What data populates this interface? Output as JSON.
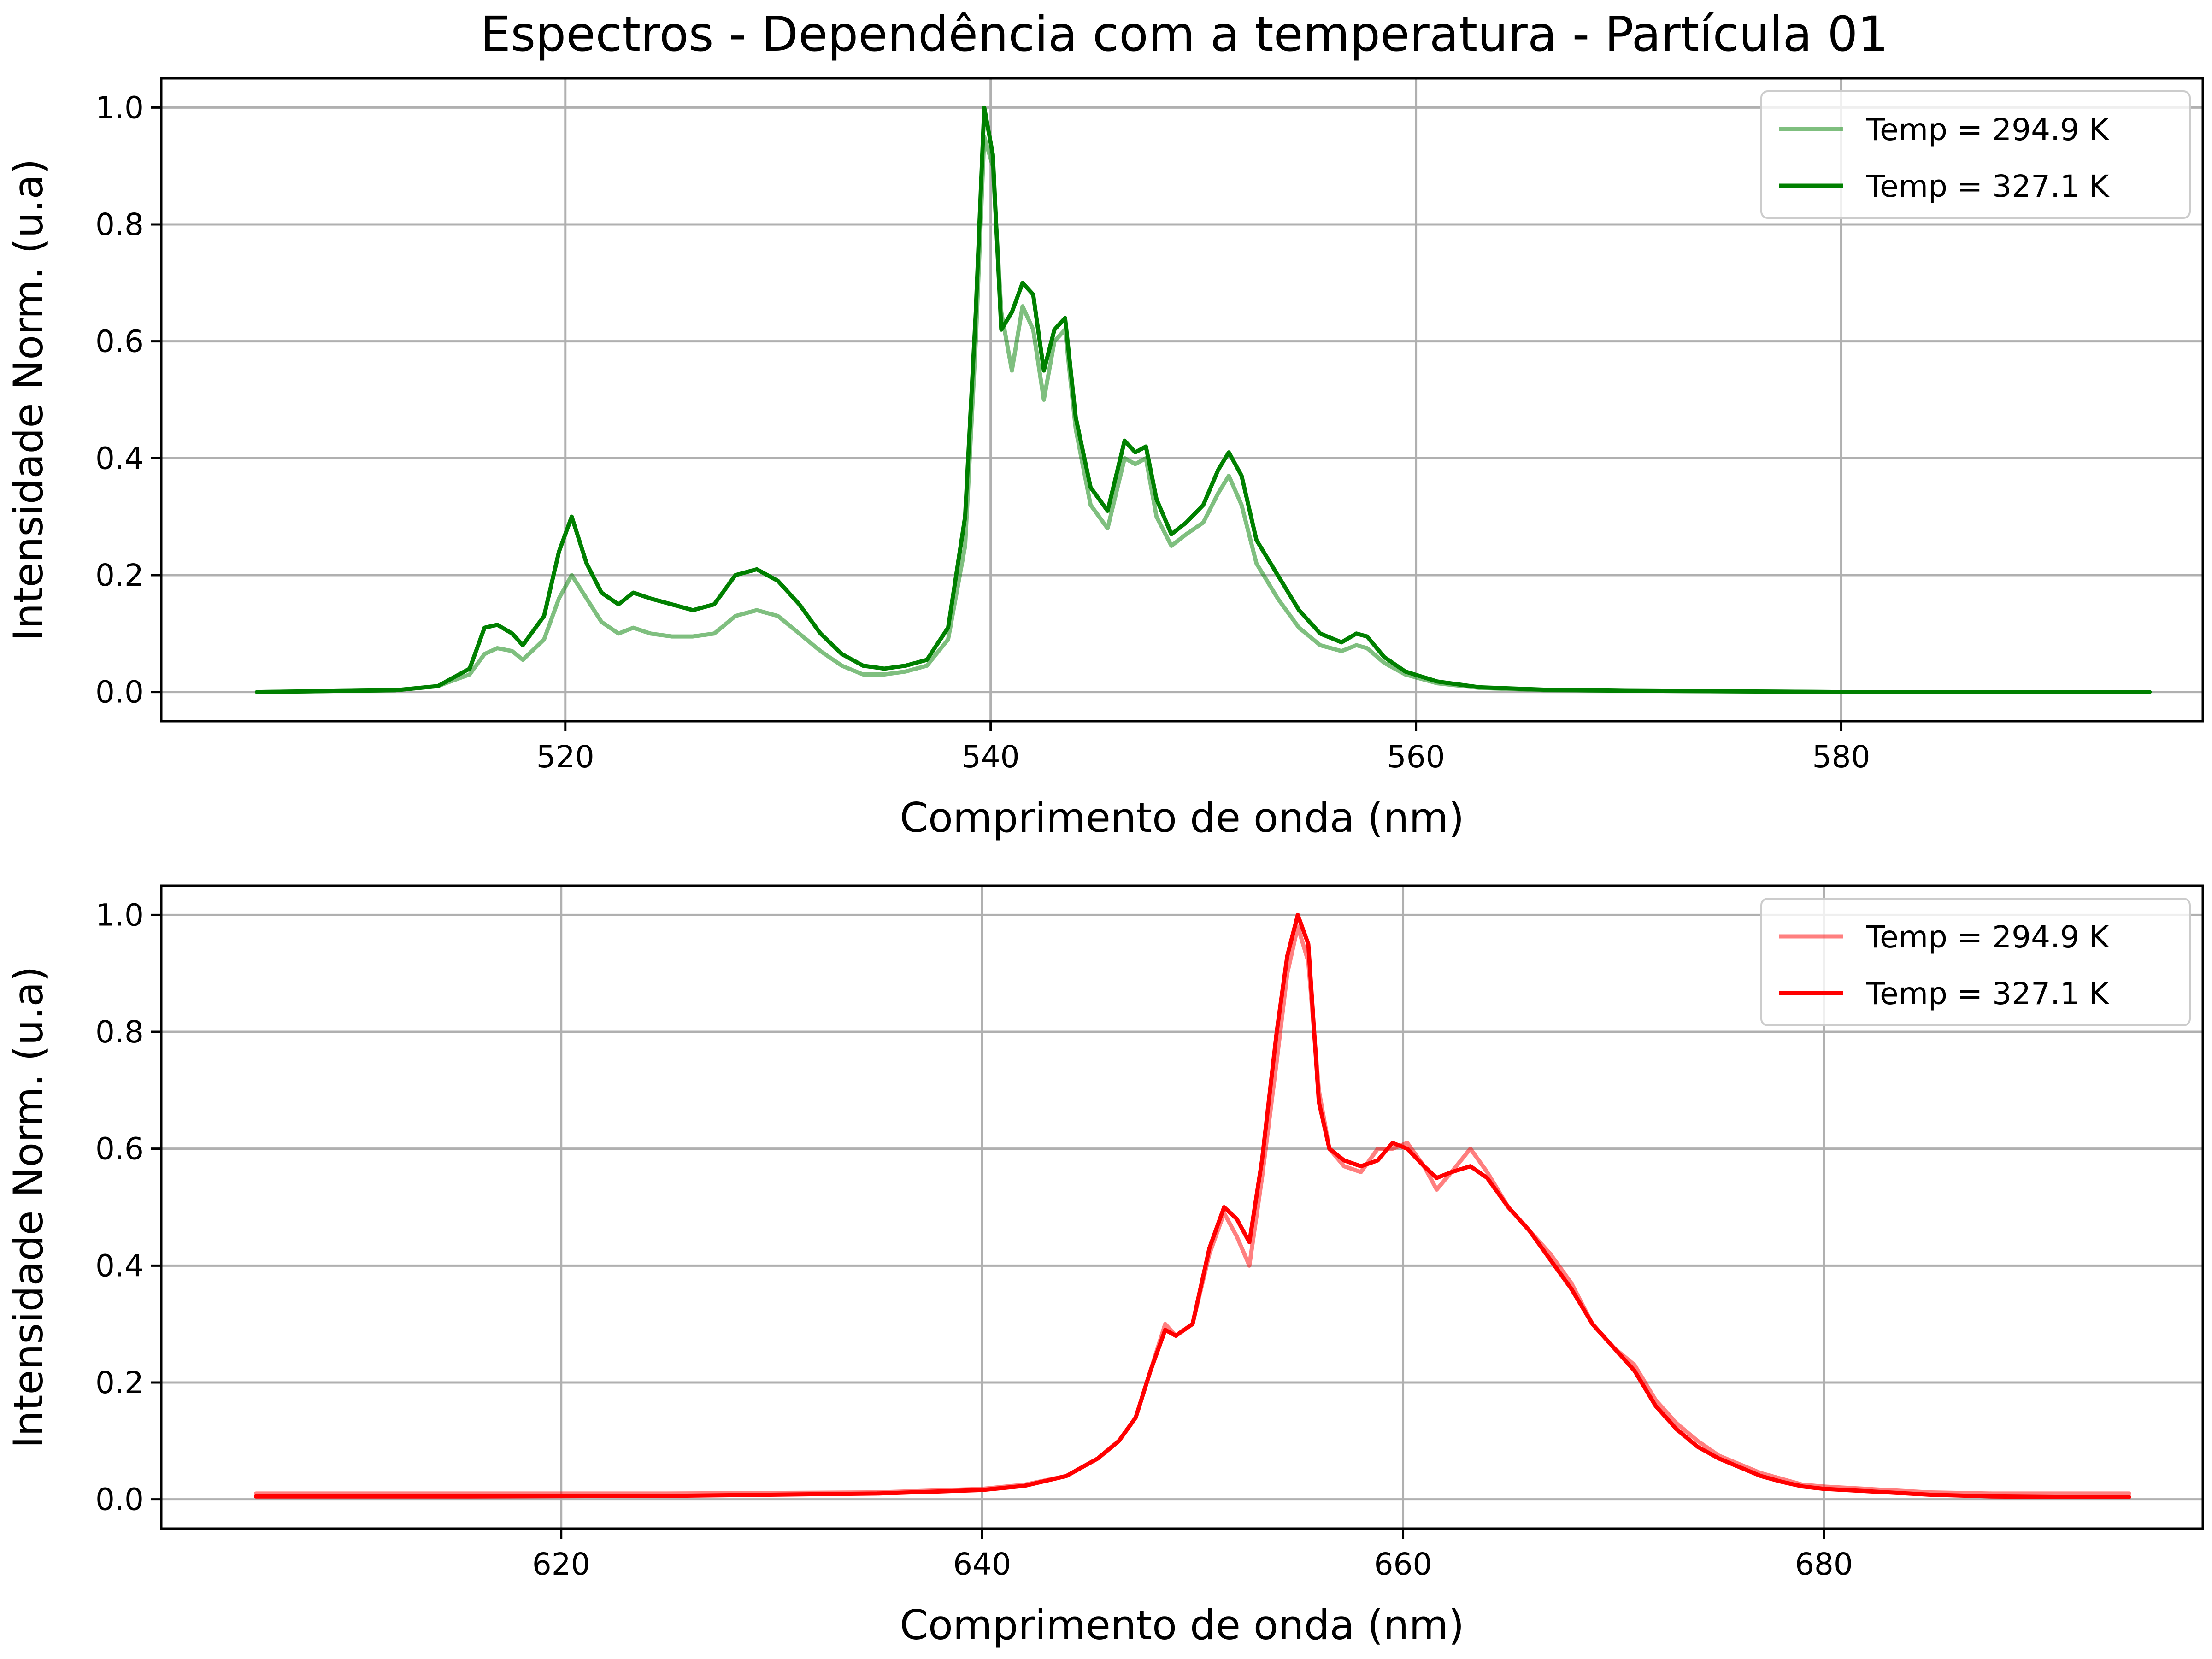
{
  "figure": {
    "title": "Espectros - Dependência com a temperatura - Partícula 01"
  },
  "chart_data": [
    {
      "type": "line",
      "xlabel": "Comprimento de onda (nm)",
      "ylabel": "Intensidade Norm. (u.a)",
      "xlim": [
        501,
        597
      ],
      "ylim": [
        -0.05,
        1.05
      ],
      "xticks": [
        520,
        540,
        560,
        580
      ],
      "yticks": [
        0.0,
        0.2,
        0.4,
        0.6,
        0.8,
        1.0
      ],
      "grid": true,
      "legend": "top-right",
      "series": [
        {
          "name": "Temp = 294.9 K",
          "color": "#008000",
          "opacity": 0.5,
          "x": [
            505.5,
            512,
            514,
            515.5,
            516.2,
            516.8,
            517.5,
            518,
            519,
            519.7,
            520.3,
            521,
            521.7,
            522.5,
            523.2,
            524,
            525,
            526,
            527,
            528,
            529,
            530,
            531,
            532,
            533,
            534,
            535,
            536,
            537,
            538,
            538.8,
            539.3,
            539.7,
            540.1,
            540.5,
            541,
            541.5,
            542,
            542.5,
            543,
            543.5,
            544,
            544.7,
            545.5,
            546.3,
            546.8,
            547.3,
            547.8,
            548.5,
            549.2,
            550,
            550.7,
            551.2,
            551.8,
            552.5,
            553.5,
            554.5,
            555.5,
            556.5,
            557.2,
            557.7,
            558.5,
            559.5,
            561,
            563,
            566,
            570,
            575,
            580,
            585,
            590,
            594.5
          ],
          "y": [
            0.0,
            0.003,
            0.01,
            0.03,
            0.065,
            0.075,
            0.07,
            0.055,
            0.09,
            0.16,
            0.2,
            0.16,
            0.12,
            0.1,
            0.11,
            0.1,
            0.095,
            0.095,
            0.1,
            0.13,
            0.14,
            0.13,
            0.1,
            0.07,
            0.045,
            0.03,
            0.03,
            0.035,
            0.045,
            0.09,
            0.25,
            0.6,
            0.95,
            0.9,
            0.65,
            0.55,
            0.66,
            0.62,
            0.5,
            0.6,
            0.62,
            0.45,
            0.32,
            0.28,
            0.4,
            0.39,
            0.4,
            0.3,
            0.25,
            0.27,
            0.29,
            0.34,
            0.37,
            0.32,
            0.22,
            0.16,
            0.11,
            0.08,
            0.07,
            0.08,
            0.075,
            0.05,
            0.03,
            0.015,
            0.007,
            0.003,
            0.002,
            0.001,
            0.0,
            0.0,
            0.0,
            0.0
          ]
        },
        {
          "name": "Temp = 327.1 K",
          "color": "#008000",
          "opacity": 1.0,
          "x": [
            505.5,
            512,
            514,
            515.5,
            516.2,
            516.8,
            517.5,
            518,
            519,
            519.7,
            520.3,
            521,
            521.7,
            522.5,
            523.2,
            524,
            525,
            526,
            527,
            528,
            529,
            530,
            531,
            532,
            533,
            534,
            535,
            536,
            537,
            538,
            538.8,
            539.3,
            539.7,
            540.1,
            540.5,
            541,
            541.5,
            542,
            542.5,
            543,
            543.5,
            544,
            544.7,
            545.5,
            546.3,
            546.8,
            547.3,
            547.8,
            548.5,
            549.2,
            550,
            550.7,
            551.2,
            551.8,
            552.5,
            553.5,
            554.5,
            555.5,
            556.5,
            557.2,
            557.7,
            558.5,
            559.5,
            561,
            563,
            566,
            570,
            575,
            580,
            585,
            590,
            594.5
          ],
          "y": [
            0.0,
            0.003,
            0.01,
            0.04,
            0.11,
            0.115,
            0.1,
            0.08,
            0.13,
            0.24,
            0.3,
            0.22,
            0.17,
            0.15,
            0.17,
            0.16,
            0.15,
            0.14,
            0.15,
            0.2,
            0.21,
            0.19,
            0.15,
            0.1,
            0.065,
            0.045,
            0.04,
            0.045,
            0.055,
            0.11,
            0.3,
            0.65,
            1.0,
            0.92,
            0.62,
            0.65,
            0.7,
            0.68,
            0.55,
            0.62,
            0.64,
            0.47,
            0.35,
            0.31,
            0.43,
            0.41,
            0.42,
            0.33,
            0.27,
            0.29,
            0.32,
            0.38,
            0.41,
            0.37,
            0.26,
            0.2,
            0.14,
            0.1,
            0.085,
            0.1,
            0.095,
            0.06,
            0.035,
            0.018,
            0.008,
            0.004,
            0.002,
            0.001,
            0.0,
            0.0,
            0.0,
            0.0
          ]
        }
      ]
    },
    {
      "type": "line",
      "xlabel": "Comprimento de onda (nm)",
      "ylabel": "Intensidade Norm. (u.a)",
      "xlim": [
        601,
        698
      ],
      "ylim": [
        -0.05,
        1.05
      ],
      "xticks": [
        620,
        640,
        660,
        680
      ],
      "yticks": [
        0.0,
        0.2,
        0.4,
        0.6,
        0.8,
        1.0
      ],
      "grid": true,
      "legend": "top-right",
      "series": [
        {
          "name": "Temp = 294.9 K",
          "color": "#ff0000",
          "opacity": 0.5,
          "x": [
            605.5,
            615,
            625,
            635,
            640,
            642,
            644,
            645.5,
            646.5,
            647.3,
            648,
            648.7,
            649.2,
            650,
            650.8,
            651.5,
            652.1,
            652.7,
            653.3,
            654,
            654.5,
            655,
            655.5,
            656,
            656.5,
            657.2,
            658,
            658.8,
            659.5,
            660.2,
            661,
            661.6,
            662.3,
            663.2,
            664,
            665,
            666,
            667,
            668,
            669,
            670,
            671,
            672,
            673,
            674,
            675,
            676,
            677,
            678,
            679,
            680,
            682,
            685,
            688,
            691,
            694.5
          ],
          "y": [
            0.01,
            0.01,
            0.01,
            0.012,
            0.018,
            0.025,
            0.04,
            0.07,
            0.1,
            0.14,
            0.22,
            0.3,
            0.28,
            0.3,
            0.42,
            0.49,
            0.45,
            0.4,
            0.55,
            0.75,
            0.9,
            0.98,
            0.92,
            0.7,
            0.6,
            0.57,
            0.56,
            0.6,
            0.6,
            0.61,
            0.57,
            0.53,
            0.56,
            0.6,
            0.56,
            0.5,
            0.46,
            0.42,
            0.37,
            0.3,
            0.26,
            0.23,
            0.17,
            0.13,
            0.1,
            0.075,
            0.06,
            0.045,
            0.035,
            0.025,
            0.022,
            0.018,
            0.012,
            0.01,
            0.01,
            0.01
          ]
        },
        {
          "name": "Temp = 327.1 K",
          "color": "#ff0000",
          "opacity": 1.0,
          "x": [
            605.5,
            615,
            625,
            635,
            640,
            642,
            644,
            645.5,
            646.5,
            647.3,
            648,
            648.7,
            649.2,
            650,
            650.8,
            651.5,
            652.1,
            652.7,
            653.3,
            654,
            654.5,
            655,
            655.5,
            656,
            656.5,
            657.2,
            658,
            658.8,
            659.5,
            660.2,
            661,
            661.6,
            662.3,
            663.2,
            664,
            665,
            666,
            667,
            668,
            669,
            670,
            671,
            672,
            673,
            674,
            675,
            676,
            677,
            678,
            679,
            680,
            682,
            685,
            688,
            691,
            694.5
          ],
          "y": [
            0.005,
            0.005,
            0.006,
            0.01,
            0.016,
            0.023,
            0.04,
            0.07,
            0.1,
            0.14,
            0.22,
            0.29,
            0.28,
            0.3,
            0.43,
            0.5,
            0.48,
            0.44,
            0.58,
            0.8,
            0.93,
            1.0,
            0.95,
            0.68,
            0.6,
            0.58,
            0.57,
            0.58,
            0.61,
            0.6,
            0.57,
            0.55,
            0.56,
            0.57,
            0.55,
            0.5,
            0.46,
            0.41,
            0.36,
            0.3,
            0.26,
            0.22,
            0.16,
            0.12,
            0.09,
            0.07,
            0.055,
            0.04,
            0.03,
            0.022,
            0.018,
            0.014,
            0.008,
            0.005,
            0.004,
            0.004
          ]
        }
      ]
    }
  ]
}
